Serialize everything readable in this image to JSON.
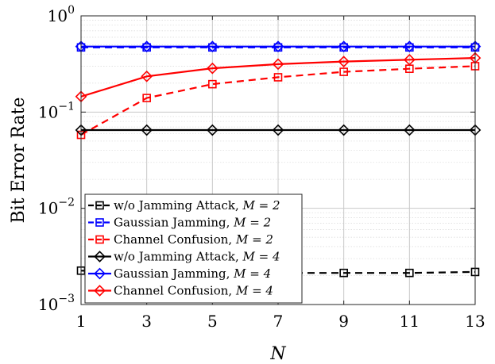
{
  "chart_data": {
    "type": "line",
    "xlabel": "N",
    "ylabel": "Bit Error Rate",
    "y_scale": "log",
    "x_ticks": [
      1,
      3,
      5,
      7,
      9,
      11,
      13
    ],
    "xlim": [
      1,
      13
    ],
    "ylim": [
      0.001,
      1
    ],
    "y_ticks": [
      {
        "value": 1,
        "base": "10",
        "exp": "0"
      },
      {
        "value": 0.1,
        "base": "10",
        "exp": "−1"
      },
      {
        "value": 0.01,
        "base": "10",
        "exp": "−2"
      },
      {
        "value": 0.001,
        "base": "10",
        "exp": "−3"
      }
    ],
    "grid": true,
    "minor_grid": true,
    "legend_position": "bottom-left",
    "x": [
      1,
      3,
      5,
      7,
      9,
      11,
      13
    ],
    "series": [
      {
        "label": "w/o Jamming Attack, ",
        "math": "M = 2",
        "color": "#000000",
        "dash": "dashed",
        "marker": "square",
        "values": [
          0.00225,
          0.00218,
          0.00215,
          0.00213,
          0.00213,
          0.00213,
          0.00218
        ]
      },
      {
        "label": "Gaussian Jamming, ",
        "math": "M = 2",
        "color": "#0000ff",
        "dash": "dashed",
        "marker": "square",
        "values": [
          0.47,
          0.47,
          0.47,
          0.47,
          0.47,
          0.47,
          0.47
        ]
      },
      {
        "label": "Channel Confusion, ",
        "math": "M = 2",
        "color": "#ff0000",
        "dash": "dashed",
        "marker": "square",
        "values": [
          0.058,
          0.14,
          0.195,
          0.23,
          0.262,
          0.282,
          0.3
        ]
      },
      {
        "label": "w/o Jamming Attack, ",
        "math": "M = 4",
        "color": "#000000",
        "dash": "solid",
        "marker": "diamond",
        "values": [
          0.065,
          0.065,
          0.065,
          0.065,
          0.065,
          0.065,
          0.065
        ]
      },
      {
        "label": "Gaussian Jamming, ",
        "math": "M = 4",
        "color": "#0000ff",
        "dash": "solid",
        "marker": "diamond",
        "values": [
          0.48,
          0.48,
          0.48,
          0.48,
          0.48,
          0.48,
          0.48
        ]
      },
      {
        "label": "Channel Confusion, ",
        "math": "M = 4",
        "color": "#ff0000",
        "dash": "solid",
        "marker": "diamond",
        "values": [
          0.145,
          0.235,
          0.285,
          0.315,
          0.335,
          0.35,
          0.365
        ]
      }
    ]
  }
}
